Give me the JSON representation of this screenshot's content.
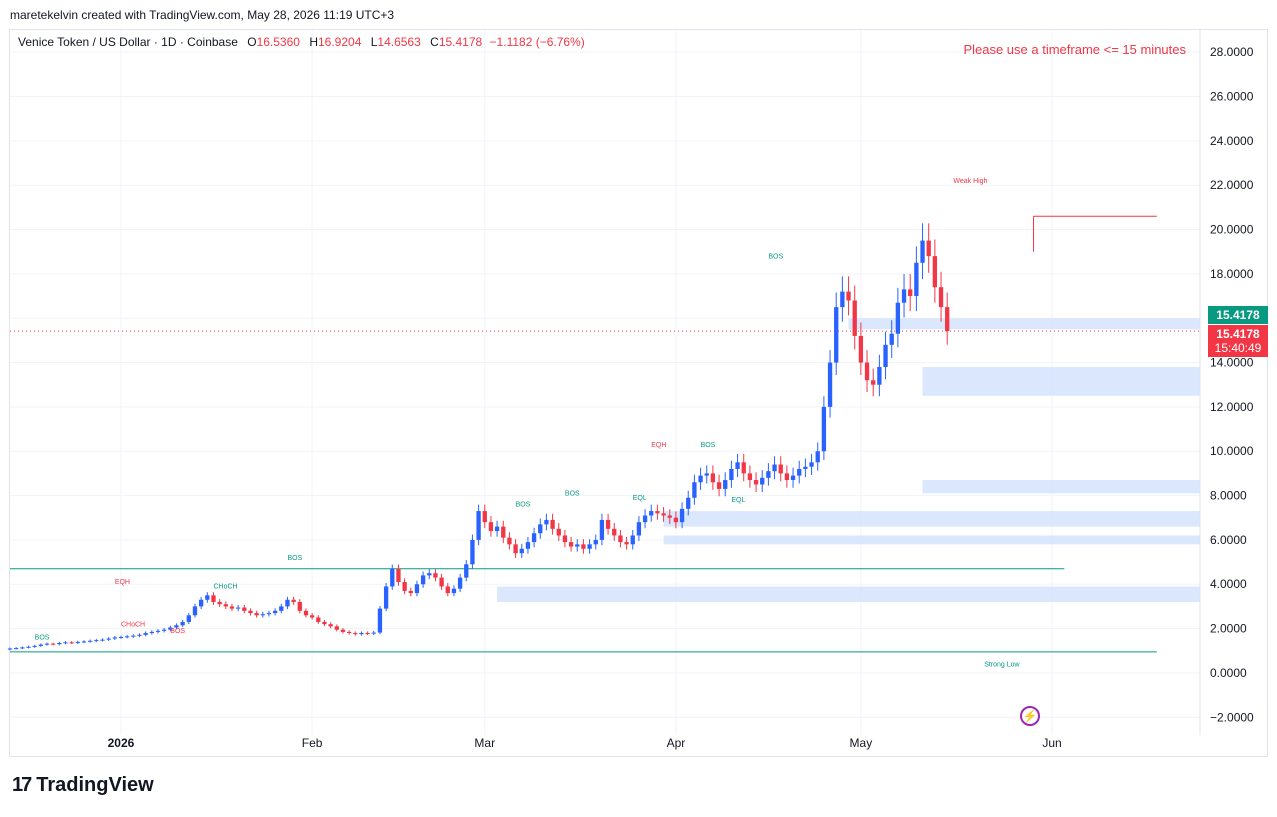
{
  "credit": "maretekelvin created with TradingView.com, May 28, 2026 11:19 UTC+3",
  "legend": {
    "symbol": "Venice Token / US Dollar · 1D · Coinbase",
    "o_label": "O",
    "o": "16.5360",
    "h_label": "H",
    "h": "16.9204",
    "l_label": "L",
    "l": "14.6563",
    "c_label": "C",
    "c": "15.4178",
    "change": "−1.1182 (−6.76%)"
  },
  "warning": "Please use a timeframe <= 15 minutes",
  "price_tags": {
    "last": "15.4178",
    "close": "15.4178",
    "countdown": "15:40:49"
  },
  "footer": {
    "brand": "TradingView"
  },
  "colors": {
    "up": "#2962ff",
    "down": "#f23645",
    "bos": "#089981",
    "zone": "#d6e4fd",
    "ref_line": "#089981"
  },
  "chart_data": {
    "type": "candlestick",
    "title": "Venice Token / US Dollar · 1D · Coinbase",
    "ylim": [
      -2.8,
      29
    ],
    "y_ticks": [
      "28.0000",
      "26.0000",
      "24.0000",
      "22.0000",
      "20.0000",
      "18.0000",
      "16.0000",
      "14.0000",
      "12.0000",
      "10.0000",
      "8.0000",
      "6.0000",
      "4.0000",
      "2.0000",
      "0.0000",
      "−2.0000"
    ],
    "y_tick_values": [
      28,
      26,
      24,
      22,
      20,
      18,
      16,
      14,
      12,
      10,
      8,
      6,
      4,
      2,
      0,
      -2
    ],
    "x_ticks": [
      {
        "label": "2026",
        "day": 0
      },
      {
        "label": "Feb",
        "day": 31
      },
      {
        "label": "Mar",
        "day": 59
      },
      {
        "label": "Apr",
        "day": 90
      },
      {
        "label": "May",
        "day": 120
      },
      {
        "label": "Jun",
        "day": 151
      }
    ],
    "x_range_days": [
      -18,
      175
    ],
    "close_series": [
      1.1,
      1.12,
      1.15,
      1.18,
      1.22,
      1.28,
      1.32,
      1.3,
      1.35,
      1.38,
      1.36,
      1.4,
      1.42,
      1.45,
      1.48,
      1.5,
      1.55,
      1.6,
      1.62,
      1.65,
      1.68,
      1.72,
      1.8,
      1.85,
      1.9,
      1.95,
      2.05,
      2.15,
      2.3,
      2.6,
      3.0,
      3.3,
      3.5,
      3.2,
      3.1,
      3.0,
      2.9,
      2.95,
      2.8,
      2.7,
      2.6,
      2.65,
      2.7,
      2.8,
      3.0,
      3.3,
      3.2,
      2.8,
      2.6,
      2.5,
      2.3,
      2.2,
      2.1,
      1.95,
      1.85,
      1.8,
      1.75,
      1.8,
      1.78,
      1.82,
      2.9,
      3.9,
      4.7,
      4.1,
      3.7,
      3.6,
      4.0,
      4.4,
      4.5,
      4.3,
      3.9,
      3.6,
      3.8,
      4.3,
      4.9,
      6.0,
      7.3,
      6.8,
      6.4,
      6.6,
      6.1,
      5.8,
      5.4,
      5.6,
      5.9,
      6.3,
      6.7,
      6.9,
      6.5,
      6.2,
      5.9,
      5.7,
      5.8,
      5.6,
      5.8,
      6.0,
      6.9,
      6.5,
      6.2,
      5.9,
      5.8,
      6.2,
      6.8,
      7.1,
      7.3,
      7.2,
      7.1,
      7.0,
      6.8,
      7.4,
      7.9,
      8.6,
      8.9,
      9.0,
      8.6,
      8.3,
      8.7,
      9.2,
      9.5,
      9.0,
      8.7,
      8.5,
      8.8,
      9.1,
      9.4,
      9.0,
      8.7,
      8.9,
      9.2,
      9.3,
      9.5,
      10.0,
      12.0,
      14.0,
      16.5,
      17.2,
      16.8,
      15.2,
      14.0,
      13.2,
      13.0,
      13.8,
      14.8,
      15.3,
      16.7,
      17.3,
      17.0,
      18.5,
      19.5,
      18.8,
      17.4,
      16.5,
      15.42
    ],
    "close_series_start_day": -18,
    "annotations": [
      {
        "text": "BOS",
        "color": "#089981"
      },
      {
        "text": "EQH",
        "color": "#f23645"
      },
      {
        "text": "CHoCH",
        "color": "#f23645"
      },
      {
        "text": "BOS",
        "color": "#f23645"
      },
      {
        "text": "CHoCH",
        "color": "#089981"
      },
      {
        "text": "BOS",
        "color": "#089981"
      },
      {
        "text": "BOS",
        "color": "#089981"
      },
      {
        "text": "BOS",
        "color": "#089981"
      },
      {
        "text": "EQL",
        "color": "#089981"
      },
      {
        "text": "EQH",
        "color": "#f23645"
      },
      {
        "text": "BOS",
        "color": "#089981"
      },
      {
        "text": "EQL",
        "color": "#089981"
      },
      {
        "text": "BOS",
        "color": "#089981"
      },
      {
        "text": "Weak High",
        "color": "#f23645"
      },
      {
        "text": "Strong Low",
        "color": "#089981"
      }
    ],
    "levels": {
      "weak_high": 20.6,
      "strong_low": 0.95,
      "green_line": 4.7
    },
    "zones": [
      {
        "from": 15.5,
        "to": 16.0
      },
      {
        "from": 12.5,
        "to": 13.8
      },
      {
        "from": 8.1,
        "to": 8.7
      },
      {
        "from": 6.6,
        "to": 7.3
      },
      {
        "from": 5.8,
        "to": 6.2
      },
      {
        "from": 3.2,
        "to": 3.9
      }
    ]
  }
}
